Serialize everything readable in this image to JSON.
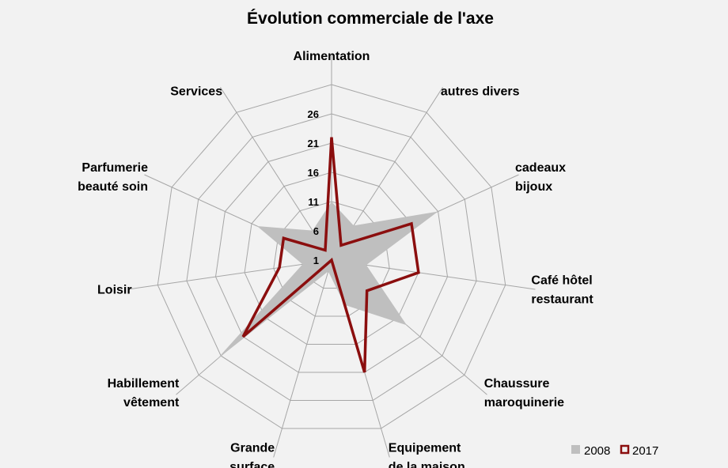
{
  "chart_data": {
    "type": "radar",
    "title": "Évolution commerciale de l'axe",
    "categories": [
      [
        "Alimentation"
      ],
      [
        "autres divers"
      ],
      [
        "cadeaux",
        "bijoux"
      ],
      [
        "Café hôtel",
        "restaurant"
      ],
      [
        "Chaussure",
        "maroquinerie"
      ],
      [
        "Equipement",
        "de la maison"
      ],
      [
        "Grande",
        "surface"
      ],
      [
        "Habillement",
        "vêtement"
      ],
      [
        "Loisir"
      ],
      [
        "Parfumerie",
        "beauté soin"
      ],
      [
        "Services"
      ]
    ],
    "axis_ticks": [
      "1",
      "6",
      "11",
      "16",
      "21",
      "26"
    ],
    "range": [
      1,
      26
    ],
    "series": [
      {
        "name": "2008",
        "values": [
          11,
          8,
          21,
          7,
          18,
          9,
          3,
          27,
          6,
          15,
          7
        ],
        "color": "#bfbfbf",
        "style": "filled"
      },
      {
        "name": "2017",
        "values": [
          22,
          4,
          16,
          16,
          9,
          21,
          1,
          21,
          10,
          10,
          3
        ],
        "color": "#8b0e0e",
        "style": "line"
      }
    ],
    "legend_position": "bottom-right",
    "grid": true
  }
}
